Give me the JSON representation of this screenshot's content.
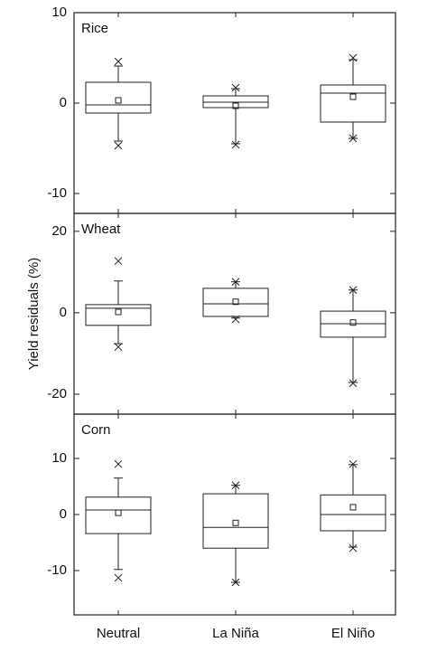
{
  "chart_data": [
    {
      "type": "box",
      "title": "Rice",
      "ylim": [
        -12.2,
        10
      ],
      "yticks": [
        -10,
        0,
        10
      ],
      "boxes": [
        {
          "whislo": -4.2,
          "q1": -1.1,
          "med": -0.2,
          "q3": 2.3,
          "whishi": 4.1,
          "mean": 0.3,
          "min": -4.7,
          "max": 4.6
        },
        {
          "whislo": -4.5,
          "q1": -0.5,
          "med": 0.1,
          "q3": 0.8,
          "whishi": 1.6,
          "mean": -0.3,
          "min": -4.6,
          "max": 1.7
        },
        {
          "whislo": -3.9,
          "q1": -2.1,
          "med": 1.1,
          "q3": 2.0,
          "whishi": 4.8,
          "mean": 0.7,
          "min": -3.9,
          "max": 5.0
        }
      ]
    },
    {
      "type": "box",
      "title": "Wheat",
      "ylabel": "Yield residuals (%)",
      "ylim": [
        -24.9,
        24.4
      ],
      "yticks": [
        -20,
        0,
        20
      ],
      "boxes": [
        {
          "whislo": -7.6,
          "q1": -3.1,
          "med": 1.1,
          "q3": 2.0,
          "whishi": 7.8,
          "mean": 0.2,
          "min": -8.4,
          "max": 12.7
        },
        {
          "whislo": -1.3,
          "q1": -0.9,
          "med": 2.2,
          "q3": 6.0,
          "whishi": 7.6,
          "mean": 2.7,
          "min": -1.6,
          "max": 7.6
        },
        {
          "whislo": -17.1,
          "q1": -6.0,
          "med": -2.7,
          "q3": 0.4,
          "whishi": 5.6,
          "mean": -2.4,
          "min": -17.3,
          "max": 5.6
        }
      ]
    },
    {
      "type": "box",
      "title": "Corn",
      "categories": [
        "Neutral",
        "La Niña",
        "El Niño"
      ],
      "ylim": [
        -17.9,
        17.9
      ],
      "yticks": [
        -10,
        0,
        10
      ],
      "boxes": [
        {
          "whislo": -9.8,
          "q1": -3.4,
          "med": 0.8,
          "q3": 3.1,
          "whishi": 6.5,
          "mean": 0.3,
          "min": -11.3,
          "max": 9.0
        },
        {
          "whislo": -12.1,
          "q1": -6.0,
          "med": -2.3,
          "q3": 3.7,
          "whishi": 5.2,
          "mean": -1.5,
          "min": -12.1,
          "max": 5.2
        },
        {
          "whislo": -5.8,
          "q1": -2.9,
          "med": 0.0,
          "q3": 3.5,
          "whishi": 8.9,
          "mean": 1.3,
          "min": -6.0,
          "max": 9.0
        }
      ]
    }
  ]
}
